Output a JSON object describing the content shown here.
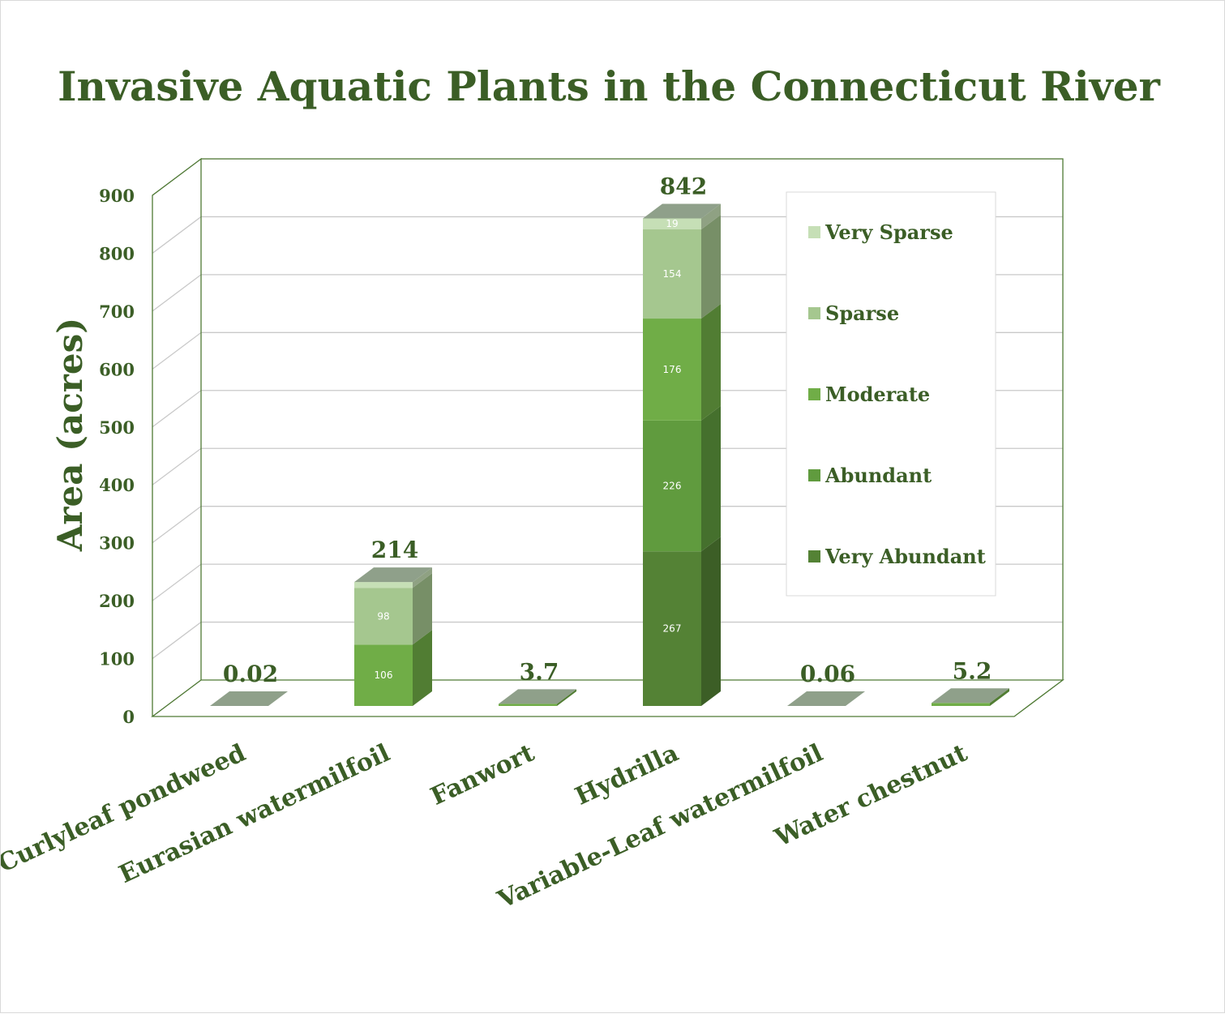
{
  "chart_data": {
    "type": "bar",
    "stacked": true,
    "three_d": true,
    "title": "Invasive Aquatic Plants in the Connecticut River",
    "xlabel": "",
    "ylabel": "Area (acres)",
    "ylim": [
      0,
      900
    ],
    "yticks": [
      0,
      100,
      200,
      300,
      400,
      500,
      600,
      700,
      800,
      900
    ],
    "grid": true,
    "legend_position": "right",
    "categories": [
      "Curlyleaf pondweed",
      "Eurasian watermilfoil",
      "Fanwort",
      "Hydrilla",
      "Variable-Leaf watermilfoil",
      "Water chestnut"
    ],
    "totals": [
      "0.02",
      "214",
      "3.7",
      "842",
      "0.06",
      "5.2"
    ],
    "series": [
      {
        "name": "Very Abundant",
        "color": "#548235",
        "values": [
          0,
          0,
          0,
          267,
          0,
          0
        ],
        "labels": [
          "",
          "",
          "",
          "267",
          "",
          ""
        ]
      },
      {
        "name": "Abundant",
        "color": "#609b3e",
        "values": [
          0,
          0,
          0,
          226,
          0,
          0
        ],
        "labels": [
          "",
          "",
          "",
          "226",
          "",
          ""
        ]
      },
      {
        "name": "Moderate",
        "color": "#70ad47",
        "values": [
          0,
          106,
          3.7,
          176,
          0,
          5.2
        ],
        "labels": [
          "",
          "106",
          "",
          "176",
          "",
          ""
        ]
      },
      {
        "name": "Sparse",
        "color": "#a5c78f",
        "values": [
          0,
          98,
          0,
          154,
          0,
          0
        ],
        "labels": [
          "",
          "98",
          "",
          "154",
          "",
          ""
        ]
      },
      {
        "name": "Very Sparse",
        "color": "#c6dfb6",
        "values": [
          0.02,
          10,
          0,
          19,
          0.06,
          0
        ],
        "labels": [
          "",
          "",
          "",
          "19",
          "",
          ""
        ]
      }
    ]
  }
}
